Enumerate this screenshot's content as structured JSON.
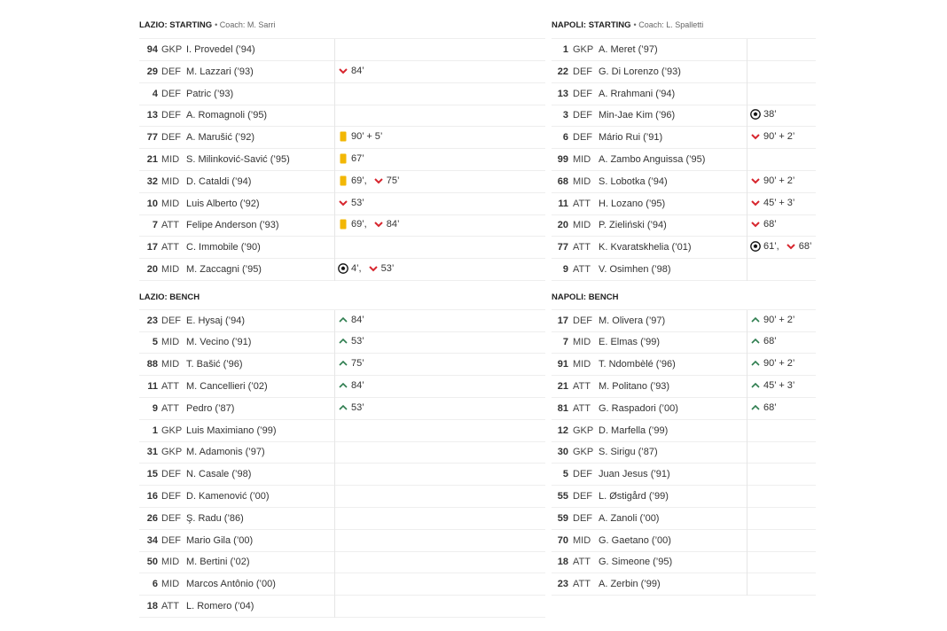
{
  "teams": [
    {
      "starting": {
        "title": "LAZIO: STARTING",
        "coach": "• Coach: M. Sarri",
        "players": [
          {
            "number": 94,
            "position": "GKP",
            "name": "I. Provedel (’94)",
            "events": []
          },
          {
            "number": 29,
            "position": "DEF",
            "name": "M. Lazzari (’93)",
            "events": [
              {
                "type": "off",
                "minute": "84’"
              }
            ]
          },
          {
            "number": 4,
            "position": "DEF",
            "name": "Patric (’93)",
            "events": []
          },
          {
            "number": 13,
            "position": "DEF",
            "name": "A. Romagnoli (’95)",
            "events": []
          },
          {
            "number": 77,
            "position": "DEF",
            "name": "A. Marušić (’92)",
            "events": [
              {
                "type": "yellow",
                "minute": "90’ + 5’"
              }
            ]
          },
          {
            "number": 21,
            "position": "MID",
            "name": "S. Milinković-Savić (’95)",
            "events": [
              {
                "type": "yellow",
                "minute": "67’"
              }
            ]
          },
          {
            "number": 32,
            "position": "MID",
            "name": "D. Cataldi (’94)",
            "events": [
              {
                "type": "yellow",
                "minute": "69’,"
              },
              {
                "type": "off",
                "minute": "75’"
              }
            ]
          },
          {
            "number": 10,
            "position": "MID",
            "name": "Luis Alberto (’92)",
            "events": [
              {
                "type": "off",
                "minute": "53’"
              }
            ]
          },
          {
            "number": 7,
            "position": "ATT",
            "name": "Felipe Anderson (’93)",
            "events": [
              {
                "type": "yellow",
                "minute": "69’,"
              },
              {
                "type": "off",
                "minute": "84’"
              }
            ]
          },
          {
            "number": 17,
            "position": "ATT",
            "name": "C. Immobile (’90)",
            "events": []
          },
          {
            "number": 20,
            "position": "MID",
            "name": "M. Zaccagni (’95)",
            "events": [
              {
                "type": "goal",
                "minute": "4’,"
              },
              {
                "type": "off",
                "minute": "53’"
              }
            ]
          }
        ]
      },
      "bench": {
        "title": "LAZIO: BENCH",
        "players": [
          {
            "number": 23,
            "position": "DEF",
            "name": "E. Hysaj (’94)",
            "events": [
              {
                "type": "on",
                "minute": "84’"
              }
            ]
          },
          {
            "number": 5,
            "position": "MID",
            "name": "M. Vecino (’91)",
            "events": [
              {
                "type": "on",
                "minute": "53’"
              }
            ]
          },
          {
            "number": 88,
            "position": "MID",
            "name": "T. Bašić (’96)",
            "events": [
              {
                "type": "on",
                "minute": "75’"
              }
            ]
          },
          {
            "number": 11,
            "position": "ATT",
            "name": "M. Cancellieri (’02)",
            "events": [
              {
                "type": "on",
                "minute": "84’"
              }
            ]
          },
          {
            "number": 9,
            "position": "ATT",
            "name": "Pedro (’87)",
            "events": [
              {
                "type": "on",
                "minute": "53’"
              }
            ]
          },
          {
            "number": 1,
            "position": "GKP",
            "name": "Luis Maximiano (’99)",
            "events": []
          },
          {
            "number": 31,
            "position": "GKP",
            "name": "M. Adamonis (’97)",
            "events": []
          },
          {
            "number": 15,
            "position": "DEF",
            "name": "N. Casale (’98)",
            "events": []
          },
          {
            "number": 16,
            "position": "DEF",
            "name": "D. Kamenović (’00)",
            "events": []
          },
          {
            "number": 26,
            "position": "DEF",
            "name": "Ş. Radu (’86)",
            "events": []
          },
          {
            "number": 34,
            "position": "DEF",
            "name": "Mario Gila (’00)",
            "events": []
          },
          {
            "number": 50,
            "position": "MID",
            "name": "M. Bertini (’02)",
            "events": []
          },
          {
            "number": 6,
            "position": "MID",
            "name": "Marcos Antônio (’00)",
            "events": []
          },
          {
            "number": 18,
            "position": "ATT",
            "name": "L. Romero (’04)",
            "events": []
          }
        ]
      }
    },
    {
      "starting": {
        "title": "NAPOLI: STARTING",
        "coach": "• Coach: L. Spalletti",
        "players": [
          {
            "number": 1,
            "position": "GKP",
            "name": "A. Meret (’97)",
            "events": []
          },
          {
            "number": 22,
            "position": "DEF",
            "name": "G. Di Lorenzo (’93)",
            "events": []
          },
          {
            "number": 13,
            "position": "DEF",
            "name": "A. Rrahmani (’94)",
            "events": []
          },
          {
            "number": 3,
            "position": "DEF",
            "name": "Min-Jae Kim (’96)",
            "events": [
              {
                "type": "goal",
                "minute": "38’"
              }
            ]
          },
          {
            "number": 6,
            "position": "DEF",
            "name": "Mário Rui (’91)",
            "events": [
              {
                "type": "off",
                "minute": "90’ + 2’"
              }
            ]
          },
          {
            "number": 99,
            "position": "MID",
            "name": "A. Zambo Anguissa (’95)",
            "events": []
          },
          {
            "number": 68,
            "position": "MID",
            "name": "S. Lobotka (’94)",
            "events": [
              {
                "type": "off",
                "minute": "90’ + 2’"
              }
            ]
          },
          {
            "number": 11,
            "position": "ATT",
            "name": "H. Lozano (’95)",
            "events": [
              {
                "type": "off",
                "minute": "45’ + 3’"
              }
            ]
          },
          {
            "number": 20,
            "position": "MID",
            "name": "P. Zieliński (’94)",
            "events": [
              {
                "type": "off",
                "minute": "68’"
              }
            ]
          },
          {
            "number": 77,
            "position": "ATT",
            "name": "K. Kvaratskhelia (’01)",
            "events": [
              {
                "type": "goal",
                "minute": "61’,"
              },
              {
                "type": "off",
                "minute": "68’"
              }
            ]
          },
          {
            "number": 9,
            "position": "ATT",
            "name": "V. Osimhen (’98)",
            "events": []
          }
        ]
      },
      "bench": {
        "title": "NAPOLI: BENCH",
        "players": [
          {
            "number": 17,
            "position": "DEF",
            "name": "M. Olivera (’97)",
            "events": [
              {
                "type": "on",
                "minute": "90’ + 2’"
              }
            ]
          },
          {
            "number": 7,
            "position": "MID",
            "name": "E. Elmas (’99)",
            "events": [
              {
                "type": "on",
                "minute": "68’"
              }
            ]
          },
          {
            "number": 91,
            "position": "MID",
            "name": "T. Ndombèlé (’96)",
            "events": [
              {
                "type": "on",
                "minute": "90’ + 2’"
              }
            ]
          },
          {
            "number": 21,
            "position": "ATT",
            "name": "M. Politano (’93)",
            "events": [
              {
                "type": "on",
                "minute": "45’ + 3’"
              }
            ]
          },
          {
            "number": 81,
            "position": "ATT",
            "name": "G. Raspadori (’00)",
            "events": [
              {
                "type": "on",
                "minute": "68’"
              }
            ]
          },
          {
            "number": 12,
            "position": "GKP",
            "name": "D. Marfella (’99)",
            "events": []
          },
          {
            "number": 30,
            "position": "GKP",
            "name": "S. Sirigu (’87)",
            "events": []
          },
          {
            "number": 5,
            "position": "DEF",
            "name": "Juan Jesus (’91)",
            "events": []
          },
          {
            "number": 55,
            "position": "DEF",
            "name": "L. Østigård (’99)",
            "events": []
          },
          {
            "number": 59,
            "position": "DEF",
            "name": "A. Zanoli (’00)",
            "events": []
          },
          {
            "number": 70,
            "position": "MID",
            "name": "G. Gaetano (’00)",
            "events": []
          },
          {
            "number": 18,
            "position": "ATT",
            "name": "G. Simeone (’95)",
            "events": []
          },
          {
            "number": 23,
            "position": "ATT",
            "name": "A. Zerbin (’99)",
            "events": []
          }
        ]
      }
    }
  ]
}
